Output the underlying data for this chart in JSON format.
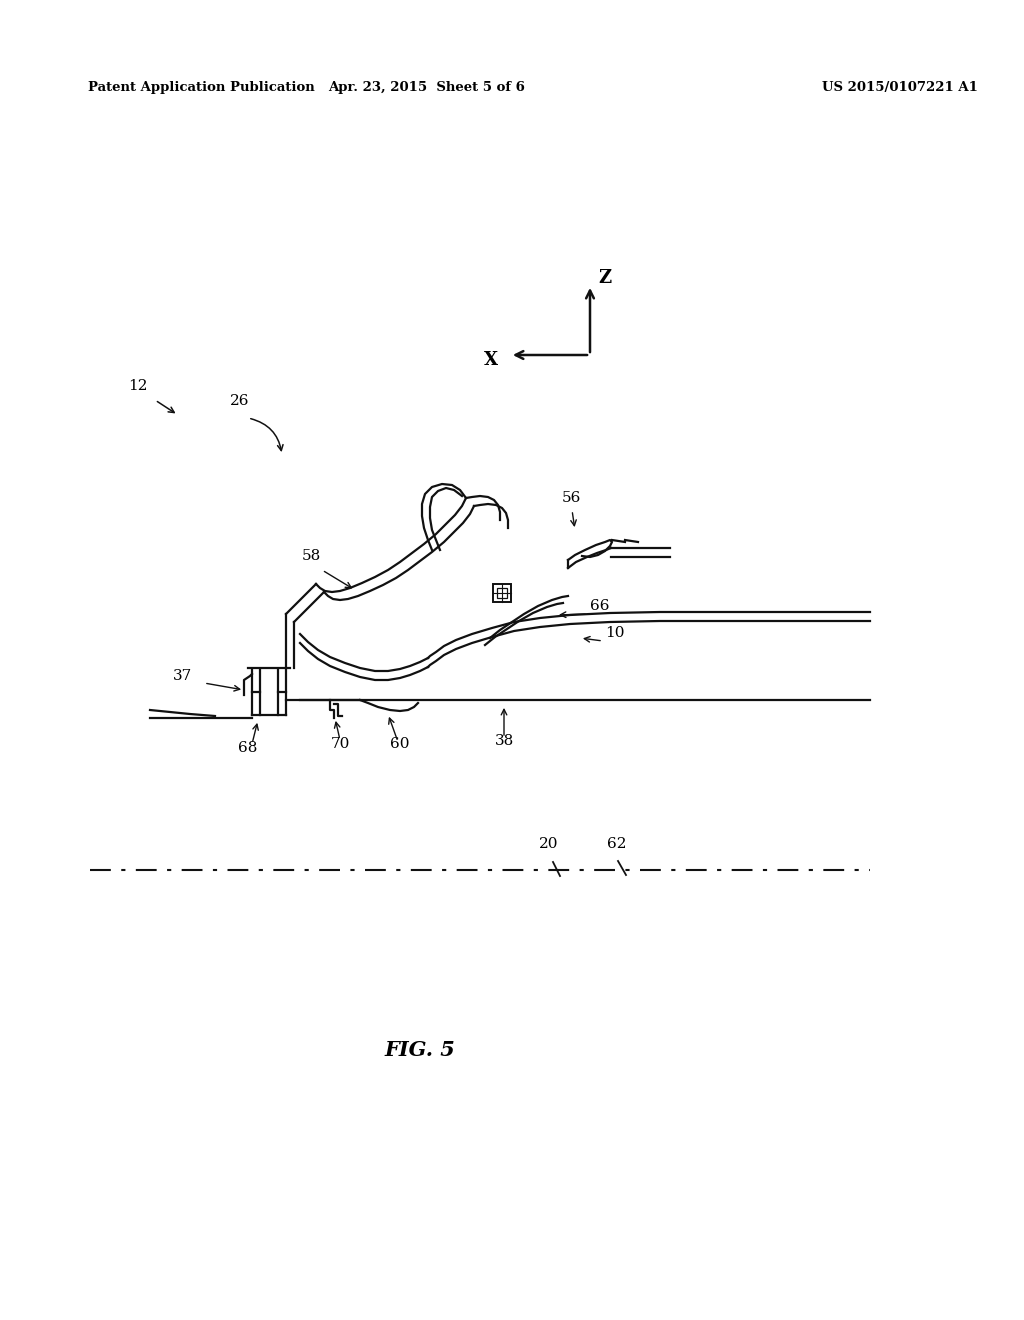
{
  "bg_color": "#ffffff",
  "header_left": "Patent Application Publication",
  "header_mid": "Apr. 23, 2015  Sheet 5 of 6",
  "header_right": "US 2015/0107221 A1",
  "fig_label": "FIG. 5",
  "line_color": "#111111",
  "lw": 1.6
}
